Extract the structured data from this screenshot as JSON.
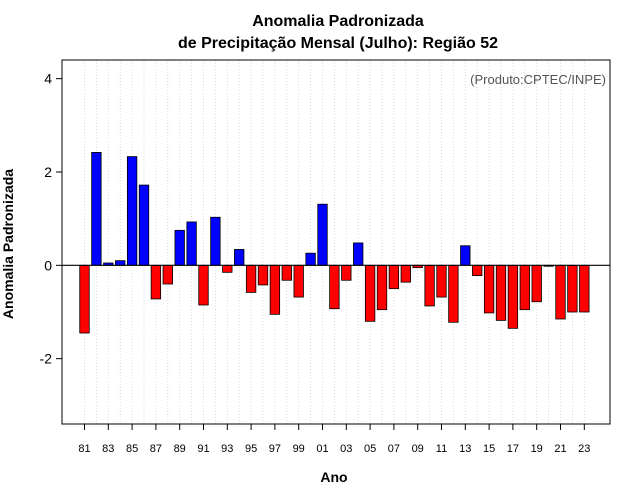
{
  "chart_data": {
    "type": "bar",
    "title_line1": "Anomalia Padronizada",
    "title_line2": "de Precipitação Mensal (Julho): Região 52",
    "xlabel": "Ano",
    "ylabel": "Anomalia Padronizada",
    "source_note": "(Produto:CPTEC/INPE)",
    "ylim": [
      -3.4,
      4.4
    ],
    "yticks": [
      -2,
      0,
      2,
      4
    ],
    "ytick_labels": [
      "-2",
      "0",
      "2",
      "4"
    ],
    "grid": "vertical-dotted",
    "positive_color": "#0000ff",
    "negative_color": "#ff0000",
    "xtick_labels": [
      "81",
      "83",
      "85",
      "87",
      "89",
      "91",
      "93",
      "95",
      "97",
      "99",
      "01",
      "03",
      "05",
      "07",
      "09",
      "11",
      "13",
      "15",
      "17",
      "19",
      "21",
      "23"
    ],
    "categories": [
      "1981",
      "1982",
      "1983",
      "1984",
      "1985",
      "1986",
      "1987",
      "1988",
      "1989",
      "1990",
      "1991",
      "1992",
      "1993",
      "1994",
      "1995",
      "1996",
      "1997",
      "1998",
      "1999",
      "2000",
      "2001",
      "2002",
      "2003",
      "2004",
      "2005",
      "2006",
      "2007",
      "2008",
      "2009",
      "2010",
      "2011",
      "2012",
      "2013",
      "2014",
      "2015",
      "2016",
      "2017",
      "2018",
      "2019",
      "2020",
      "2021",
      "2022",
      "2023"
    ],
    "values": [
      -1.45,
      2.42,
      0.05,
      0.1,
      2.33,
      1.72,
      -0.72,
      -0.4,
      0.75,
      0.93,
      -0.85,
      1.03,
      -0.15,
      0.34,
      -0.58,
      -0.42,
      -1.05,
      -0.32,
      -0.68,
      0.26,
      1.31,
      -0.93,
      -0.32,
      0.48,
      -1.2,
      -0.95,
      -0.5,
      -0.36,
      -0.05,
      -0.87,
      -0.68,
      -1.22,
      0.42,
      -0.22,
      -1.02,
      -1.18,
      -1.35,
      -0.95,
      -0.78,
      -0.02,
      -1.15,
      -1.0,
      -1.0
    ]
  }
}
